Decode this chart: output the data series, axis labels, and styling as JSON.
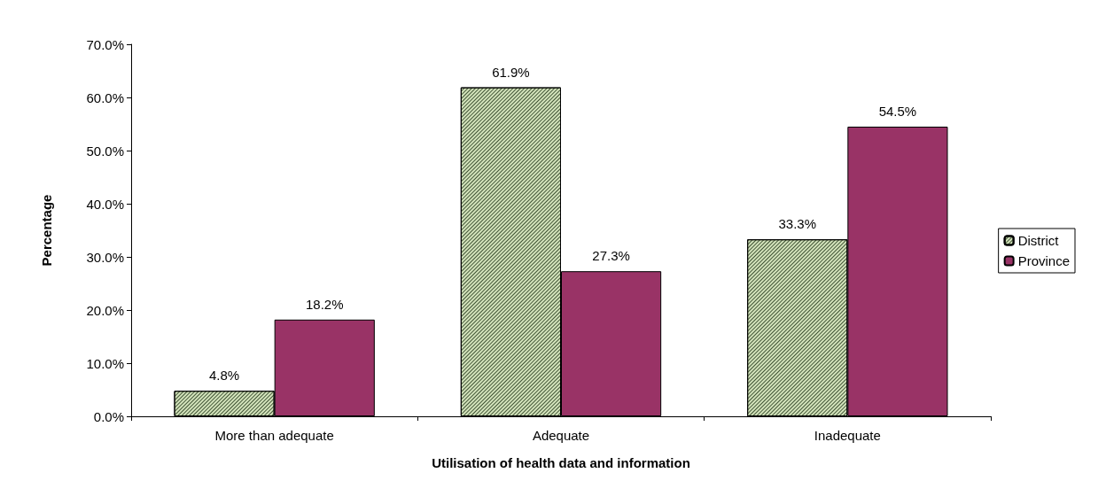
{
  "chart_data": {
    "type": "bar",
    "xlabel": "Utilisation of health data and information",
    "ylabel": "Percentage",
    "categories": [
      "More than adequate",
      "Adequate",
      "Inadequate"
    ],
    "series": [
      {
        "name": "District",
        "color": "#d4e4bc",
        "values": [
          4.8,
          61.9,
          33.3
        ],
        "value_labels": [
          "4.8%",
          "61.9%",
          "33.3%"
        ]
      },
      {
        "name": "Province",
        "color": "#993366",
        "values": [
          18.2,
          27.3,
          54.5
        ],
        "value_labels": [
          "18.2%",
          "27.3%",
          "54.5%"
        ]
      }
    ],
    "ylim": [
      0,
      70
    ],
    "yticks": [
      {
        "value": 0,
        "label": "0.0%"
      },
      {
        "value": 10,
        "label": "10.0%"
      },
      {
        "value": 20,
        "label": "20.0%"
      },
      {
        "value": 30,
        "label": "30.0%"
      },
      {
        "value": 40,
        "label": "40.0%"
      },
      {
        "value": 50,
        "label": "50.0%"
      },
      {
        "value": 60,
        "label": "60.0%"
      },
      {
        "value": 70,
        "label": "70.0%"
      }
    ],
    "grid": false,
    "legend": "right"
  }
}
